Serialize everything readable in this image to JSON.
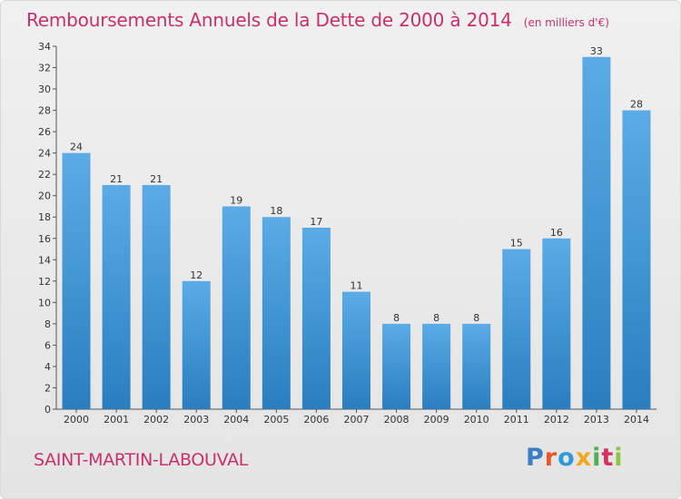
{
  "header": {
    "title": "Remboursements Annuels de la Dette de 2000 à 2014",
    "subtitle": "(en milliers d'€)"
  },
  "footer": {
    "location": "SAINT-MARTIN-LABOUVAL",
    "logo_text": "Proxiti",
    "logo_colors": [
      "#3a7fc4",
      "#e8572b",
      "#2e9ad6",
      "#f2a81d",
      "#4caf50",
      "#d6305f",
      "#8cc63f"
    ]
  },
  "colors": {
    "bar_light": "#5aabe6",
    "bar_dark": "#2a7ec0",
    "title": "#c8306c"
  },
  "chart_data": {
    "type": "bar",
    "title": "Remboursements Annuels de la Dette de 2000 à 2014",
    "xlabel": "",
    "ylabel": "",
    "ylim": [
      0,
      34
    ],
    "yticks": [
      0,
      2,
      4,
      6,
      8,
      10,
      12,
      14,
      16,
      18,
      20,
      22,
      24,
      26,
      28,
      30,
      32,
      34
    ],
    "grid": false,
    "categories": [
      "2000",
      "2001",
      "2002",
      "2003",
      "2004",
      "2005",
      "2006",
      "2007",
      "2008",
      "2009",
      "2010",
      "2011",
      "2012",
      "2013",
      "2014"
    ],
    "values": [
      24,
      21,
      21,
      12,
      19,
      18,
      17,
      11,
      8,
      8,
      8,
      15,
      16,
      33,
      28
    ]
  }
}
